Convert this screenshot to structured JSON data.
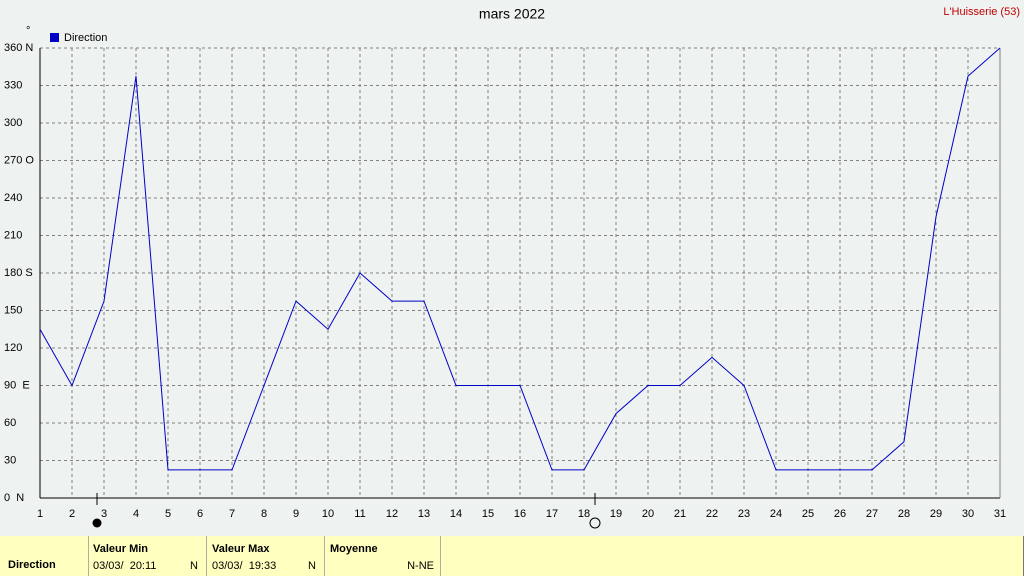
{
  "chart_data": {
    "type": "line",
    "title": "mars 2022",
    "station": "L'Huisserie (53)",
    "y_unit": "°",
    "categories": [
      "1",
      "2",
      "3",
      "4",
      "5",
      "6",
      "7",
      "8",
      "9",
      "10",
      "11",
      "12",
      "13",
      "14",
      "15",
      "16",
      "17",
      "18",
      "19",
      "20",
      "21",
      "22",
      "23",
      "24",
      "25",
      "26",
      "27",
      "28",
      "29",
      "30",
      "31"
    ],
    "series": [
      {
        "name": "Direction",
        "color": "#0000c8",
        "values": [
          135,
          90,
          157.5,
          337.5,
          22.5,
          22.5,
          22.5,
          90,
          157.5,
          135,
          180,
          157.5,
          157.5,
          90,
          90,
          90,
          22.5,
          22.5,
          67.5,
          90,
          90,
          112.5,
          90,
          22.5,
          22.5,
          22.5,
          22.5,
          45,
          225,
          337.5,
          360
        ]
      }
    ],
    "ylim": [
      0,
      360
    ],
    "yticks": [
      {
        "value": 0,
        "label": "0  N"
      },
      30,
      60,
      {
        "value": 90,
        "label": "90  E"
      },
      120,
      150,
      {
        "value": 180,
        "label": "180 S"
      },
      210,
      240,
      {
        "value": 270,
        "label": "270 O"
      },
      300,
      330,
      {
        "value": 360,
        "label": "360 N"
      }
    ],
    "grid": true
  },
  "summary": {
    "row_label": "Direction",
    "min": {
      "header": "Valeur Min",
      "date": "03/03/  20:11",
      "dir": "N"
    },
    "max": {
      "header": "Valeur Max",
      "date": "03/03/  19:33",
      "dir": "N"
    },
    "mean": {
      "header": "Moyenne",
      "dir": "N-NE"
    }
  }
}
